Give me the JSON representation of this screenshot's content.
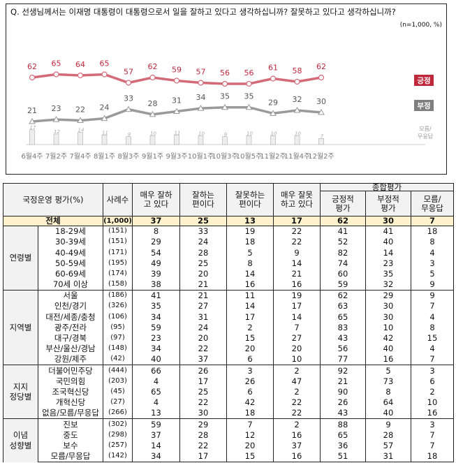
{
  "chart_data": {
    "type": "line",
    "title": "Q. 선생님께서는 이재명 대통령이 대통령으로서 일을 잘하고 있다고 생각하십니까? 잘못하고 있다고 생각하십니까?",
    "note": "(n=1,000, %)",
    "x": [
      "6월 4주",
      "7월 2주",
      "7월 4주",
      "8월 1주",
      "8월 3주",
      "9월 1주",
      "9월 3주",
      "10월 1주",
      "10월 3주",
      "10월 5주",
      "11월 2주",
      "11월 4주",
      "12월 2주"
    ],
    "series": [
      {
        "name": "긍정",
        "type": "line",
        "color": "#c0283c",
        "values": [
          62,
          65,
          64,
          65,
          57,
          62,
          59,
          57,
          56,
          56,
          61,
          58,
          62
        ]
      },
      {
        "name": "부정",
        "type": "line",
        "color": "#8c8c8c",
        "values": [
          21,
          23,
          22,
          24,
          33,
          28,
          31,
          34,
          35,
          35,
          29,
          32,
          30
        ]
      },
      {
        "name": "모름/무응답",
        "type": "bar",
        "color": "#eeeeee",
        "values": [
          17,
          12,
          14,
          11,
          9,
          10,
          11,
          10,
          9,
          10,
          10,
          10,
          7
        ]
      }
    ]
  },
  "table": {
    "header": {
      "title": "국정운영 평가(%)",
      "n": "사례수",
      "c1": "매우 잘하고 있다",
      "c2": "잘하는 편이다",
      "c3": "잘못하는 편이다",
      "c4": "매우 잘못하고 있다",
      "group": "종합평가",
      "g1": "긍정적 평가",
      "g2": "부정적 평가",
      "g3": "모름/ 무응답"
    },
    "total": {
      "label": "전체",
      "n": "(1,000)",
      "v": [
        "37",
        "25",
        "13",
        "17",
        "62",
        "30",
        "7"
      ]
    },
    "groups": [
      {
        "name": "연령별",
        "rows": [
          {
            "label": "18-29세",
            "n": "(151)",
            "v": [
              "8",
              "33",
              "19",
              "22",
              "41",
              "41",
              "18"
            ]
          },
          {
            "label": "30-39세",
            "n": "(151)",
            "v": [
              "29",
              "24",
              "18",
              "22",
              "52",
              "40",
              "8"
            ]
          },
          {
            "label": "40-49세",
            "n": "(171)",
            "v": [
              "54",
              "28",
              "5",
              "9",
              "82",
              "14",
              "4"
            ]
          },
          {
            "label": "50-59세",
            "n": "(195)",
            "v": [
              "49",
              "25",
              "8",
              "14",
              "74",
              "23",
              "3"
            ]
          },
          {
            "label": "60-69세",
            "n": "(174)",
            "v": [
              "39",
              "20",
              "14",
              "21",
              "60",
              "35",
              "5"
            ]
          },
          {
            "label": "70세 이상",
            "n": "(158)",
            "v": [
              "38",
              "21",
              "16",
              "16",
              "59",
              "32",
              "9"
            ]
          }
        ]
      },
      {
        "name": "지역별",
        "rows": [
          {
            "label": "서울",
            "n": "(186)",
            "v": [
              "41",
              "21",
              "11",
              "19",
              "62",
              "29",
              "9"
            ]
          },
          {
            "label": "인천/경기",
            "n": "(326)",
            "v": [
              "35",
              "27",
              "14",
              "17",
              "63",
              "30",
              "7"
            ]
          },
          {
            "label": "대전/세종/충청",
            "n": "(106)",
            "v": [
              "34",
              "31",
              "17",
              "14",
              "65",
              "30",
              "4"
            ]
          },
          {
            "label": "광주/전라",
            "n": "(95)",
            "v": [
              "59",
              "24",
              "2",
              "7",
              "83",
              "10",
              "8"
            ]
          },
          {
            "label": "대구/경북",
            "n": "(97)",
            "v": [
              "23",
              "20",
              "15",
              "27",
              "43",
              "42",
              "15"
            ]
          },
          {
            "label": "부산/울산/경남",
            "n": "(148)",
            "v": [
              "34",
              "22",
              "20",
              "20",
              "56",
              "40",
              "4"
            ]
          },
          {
            "label": "강원/제주",
            "n": "(42)",
            "v": [
              "40",
              "37",
              "6",
              "10",
              "77",
              "16",
              "7"
            ]
          }
        ]
      },
      {
        "name": "지지 정당별",
        "rows": [
          {
            "label": "더불어민주당",
            "n": "(444)",
            "v": [
              "66",
              "26",
              "3",
              "2",
              "92",
              "5",
              "3"
            ]
          },
          {
            "label": "국민의힘",
            "n": "(203)",
            "v": [
              "4",
              "17",
              "26",
              "47",
              "21",
              "73",
              "6"
            ]
          },
          {
            "label": "조국혁신당",
            "n": "(45)",
            "v": [
              "65",
              "25",
              "6",
              "2",
              "90",
              "8",
              "2"
            ]
          },
          {
            "label": "개혁신당",
            "n": "(27)",
            "v": [
              "4",
              "22",
              "42",
              "22",
              "26",
              "64",
              "10"
            ]
          },
          {
            "label": "없음/모름/무응답",
            "n": "(266)",
            "v": [
              "13",
              "30",
              "18",
              "22",
              "43",
              "40",
              "16"
            ]
          }
        ]
      },
      {
        "name": "이념 성향별",
        "rows": [
          {
            "label": "진보",
            "n": "(302)",
            "v": [
              "59",
              "29",
              "7",
              "2",
              "88",
              "9",
              "3"
            ]
          },
          {
            "label": "중도",
            "n": "(298)",
            "v": [
              "37",
              "28",
              "12",
              "16",
              "65",
              "28",
              "7"
            ]
          },
          {
            "label": "보수",
            "n": "(257)",
            "v": [
              "14",
              "22",
              "20",
              "37",
              "36",
              "57",
              "7"
            ]
          },
          {
            "label": "모름/무응답",
            "n": "(142)",
            "v": [
              "34",
              "17",
              "15",
              "16",
              "51",
              "31",
              "18"
            ]
          }
        ]
      }
    ]
  }
}
